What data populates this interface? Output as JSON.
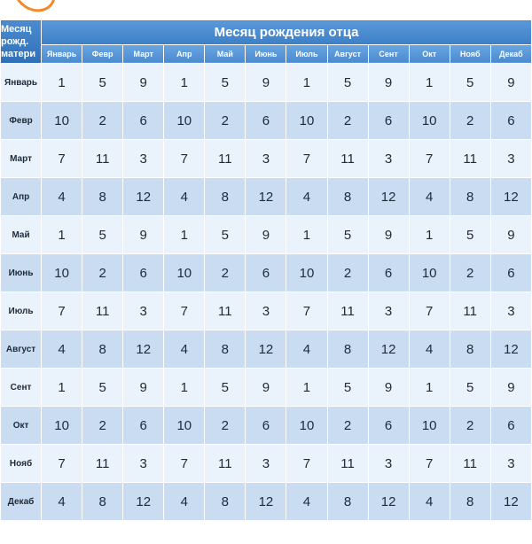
{
  "corner": {
    "line1": "Месяц",
    "line2": "рожд.",
    "line3": "матери"
  },
  "header": {
    "title": "Месяц рождения отца"
  },
  "father_months": [
    "Январь",
    "Февр",
    "Март",
    "Апр",
    "Май",
    "Июнь",
    "Июль",
    "Август",
    "Сент",
    "Окт",
    "Нояб",
    "Декаб"
  ],
  "rows": [
    {
      "month": "Январь",
      "values": [
        "1",
        "5",
        "9",
        "1",
        "5",
        "9",
        "1",
        "5",
        "9",
        "1",
        "5",
        "9"
      ]
    },
    {
      "month": "Февр",
      "values": [
        "10",
        "2",
        "6",
        "10",
        "2",
        "6",
        "10",
        "2",
        "6",
        "10",
        "2",
        "6"
      ]
    },
    {
      "month": "Март",
      "values": [
        "7",
        "11",
        "3",
        "7",
        "11",
        "3",
        "7",
        "11",
        "3",
        "7",
        "11",
        "3"
      ]
    },
    {
      "month": "Апр",
      "values": [
        "4",
        "8",
        "12",
        "4",
        "8",
        "12",
        "4",
        "8",
        "12",
        "4",
        "8",
        "12"
      ]
    },
    {
      "month": "Май",
      "values": [
        "1",
        "5",
        "9",
        "1",
        "5",
        "9",
        "1",
        "5",
        "9",
        "1",
        "5",
        "9"
      ]
    },
    {
      "month": "Июнь",
      "values": [
        "10",
        "2",
        "6",
        "10",
        "2",
        "6",
        "10",
        "2",
        "6",
        "10",
        "2",
        "6"
      ]
    },
    {
      "month": "Июль",
      "values": [
        "7",
        "11",
        "3",
        "7",
        "11",
        "3",
        "7",
        "11",
        "3",
        "7",
        "11",
        "3"
      ]
    },
    {
      "month": "Август",
      "values": [
        "4",
        "8",
        "12",
        "4",
        "8",
        "12",
        "4",
        "8",
        "12",
        "4",
        "8",
        "12"
      ]
    },
    {
      "month": "Сент",
      "values": [
        "1",
        "5",
        "9",
        "1",
        "5",
        "9",
        "1",
        "5",
        "9",
        "1",
        "5",
        "9"
      ]
    },
    {
      "month": "Окт",
      "values": [
        "10",
        "2",
        "6",
        "10",
        "2",
        "6",
        "10",
        "2",
        "6",
        "10",
        "2",
        "6"
      ]
    },
    {
      "month": "Нояб",
      "values": [
        "7",
        "11",
        "3",
        "7",
        "11",
        "3",
        "7",
        "11",
        "3",
        "7",
        "11",
        "3"
      ]
    },
    {
      "month": "Декаб",
      "values": [
        "4",
        "8",
        "12",
        "4",
        "8",
        "12",
        "4",
        "8",
        "12",
        "4",
        "8",
        "12"
      ]
    }
  ],
  "colors": {
    "header_blue": "#3d7fc6",
    "row_light": "#eaf2fb",
    "row_dark": "#c9dcf1",
    "accent_orange": "#f08a2c"
  }
}
